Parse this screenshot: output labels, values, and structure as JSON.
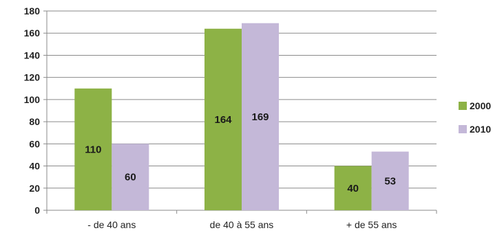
{
  "chart_data": {
    "type": "bar",
    "categories": [
      "- de 40 ans",
      "de 40 à 55 ans",
      "+ de 55 ans"
    ],
    "series": [
      {
        "name": "2000",
        "values": [
          110,
          164,
          40
        ],
        "color": "#8db246"
      },
      {
        "name": "2010",
        "values": [
          60,
          169,
          53
        ],
        "color": "#c4b8d8"
      }
    ],
    "title": "",
    "xlabel": "",
    "ylabel": "",
    "ylim": [
      0,
      180
    ],
    "yticks": [
      0,
      20,
      40,
      60,
      80,
      100,
      120,
      140,
      160,
      180
    ],
    "grid": true,
    "legend": "right"
  }
}
